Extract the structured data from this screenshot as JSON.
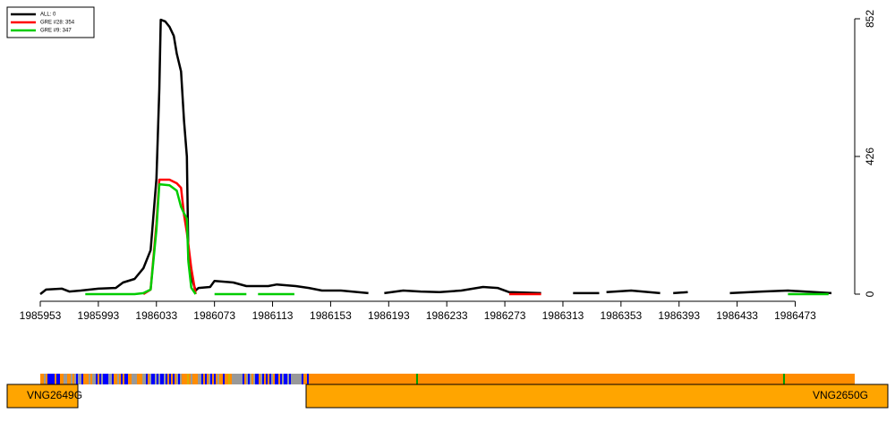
{
  "chart_data": {
    "type": "line",
    "xlim": [
      1985953,
      1986514
    ],
    "ylim": [
      0,
      852
    ],
    "xticks": [
      1985953,
      1985993,
      1986033,
      1986073,
      1986113,
      1986153,
      1986193,
      1986233,
      1986273,
      1986313,
      1986353,
      1986393,
      1986433,
      1986473
    ],
    "yticks": [
      0,
      426,
      852
    ],
    "legend": "top-left",
    "series": [
      {
        "name": "ALL: 0",
        "color": "#000000",
        "x": [
          1985953,
          1985957,
          1985968,
          1985973,
          1985981,
          1985993,
          1986005,
          1986010,
          1986018,
          1986024,
          1986029,
          1986033,
          1986035,
          1986036,
          1986039,
          1986042,
          1986045,
          1986047,
          1986050,
          1986052,
          1986054,
          1986055,
          1986057,
          1986060,
          1986062,
          1986070,
          1986073,
          1986086,
          1986095,
          1986110,
          1986116,
          1986129,
          1986138,
          1986147,
          1986160,
          1986179,
          1986184,
          1986190,
          1986203,
          1986215,
          1986228,
          1986243,
          1986258,
          1986268,
          1986276,
          1986298,
          1986309,
          1986320,
          1986338,
          1986340,
          1986343,
          1986360,
          1986380,
          1986384,
          1986389,
          1986399,
          1986413,
          1986428,
          1986450,
          1986468,
          1986498
        ],
        "values": [
          0,
          14,
          17,
          8,
          11,
          17,
          19,
          36,
          47,
          80,
          136,
          357,
          633,
          849,
          844,
          827,
          799,
          744,
          689,
          537,
          426,
          108,
          53,
          11,
          19,
          22,
          41,
          36,
          25,
          25,
          30,
          25,
          19,
          11,
          11,
          3,
          null,
          3,
          11,
          8,
          6,
          11,
          22,
          19,
          6,
          3,
          null,
          3,
          3,
          null,
          6,
          11,
          3,
          null,
          3,
          6,
          null,
          3,
          8,
          11,
          3
        ]
      },
      {
        "name": "GRE #28: 354",
        "color": "#ff0000",
        "x": [
          1986024,
          1986029,
          1986033,
          1986035,
          1986042,
          1986047,
          1986050,
          1986052,
          1986054,
          1986057,
          1986060,
          1986168,
          1986276,
          1986298
        ],
        "values": [
          0,
          14,
          218,
          354,
          354,
          343,
          329,
          246,
          191,
          80,
          0,
          null,
          0,
          0
        ]
      },
      {
        "name": "GRE #9: 347",
        "color": "#00cc00",
        "x": [
          1985984,
          1986018,
          1986024,
          1986029,
          1986033,
          1986035,
          1986042,
          1986047,
          1986050,
          1986052,
          1986054,
          1986055,
          1986057,
          1986060,
          1986066,
          1986073,
          1986095,
          1986099,
          1986103,
          1986128,
          1986300,
          1986468,
          1986496
        ],
        "values": [
          0,
          0,
          3,
          14,
          200,
          340,
          337,
          320,
          270,
          250,
          233,
          100,
          20,
          0,
          null,
          0,
          0,
          null,
          0,
          0,
          null,
          0,
          0
        ]
      }
    ]
  },
  "genes": [
    {
      "name": "VNG2649G"
    },
    {
      "name": "VNG2650G"
    }
  ]
}
